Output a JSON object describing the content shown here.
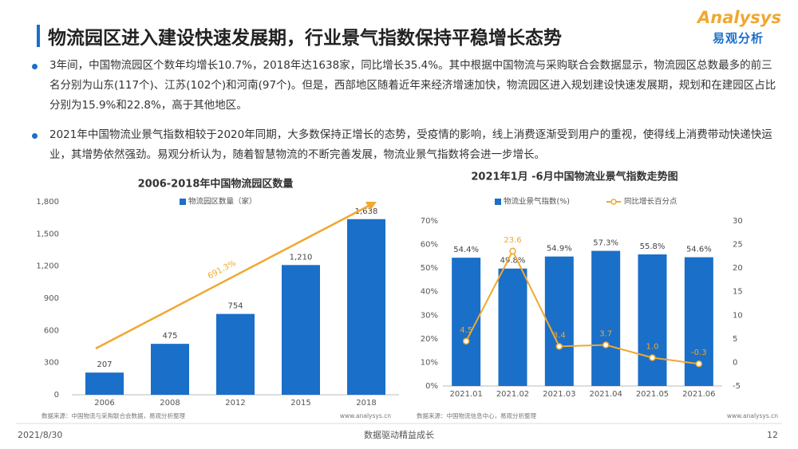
{
  "header": {
    "title": "物流园区进入建设快速发展期，行业景气指数保持平稳增长态势",
    "logo_en": "Analysys",
    "logo_cn": "易观分析"
  },
  "bullets": [
    "3年间，中国物流园区个数年均增长10.7%，2018年达1638家，同比增长35.4%。其中根据中国物流与采购联合会数据显示，物流园区总数最多的前三名分别为山东(117个)、江苏(102个)和河南(97个)。但是，西部地区随着近年来经济增速加快，物流园区进入规划建设快速发展期，规划和在建园区占比分别为15.9%和22.8%，高于其他地区。",
    "2021年中国物流业景气指数相较于2020年同期，大多数保持正增长的态势，受疫情的影响，线上消费逐渐受到用户的重视，使得线上消费带动快递快运业，其增势依然强劲。易观分析认为，随着智慧物流的不断完善发展，物流业景气指数将会进一步增长。"
  ],
  "chart_data": [
    {
      "type": "bar",
      "title": "2006-2018年中国物流园区数量",
      "categories": [
        "2006",
        "2008",
        "2012",
        "2015",
        "2018"
      ],
      "series": [
        {
          "name": "物流园区数量（家）",
          "color": "#1a6fc9",
          "type": "bar",
          "values": [
            207,
            475,
            754,
            1210,
            1638
          ],
          "value_labels": [
            "207",
            "475",
            "754",
            "1,210",
            "1,638"
          ]
        }
      ],
      "ylim": [
        0,
        1800
      ],
      "yticks": [
        0,
        300,
        600,
        900,
        {
          "value": 1200,
          "label": "1,200"
        },
        {
          "value": 1500,
          "label": "1,500"
        },
        {
          "value": 1800,
          "label": "1,800"
        }
      ],
      "grid": false,
      "annotation": "691.3%",
      "annotation_color": "#f0a830",
      "source": "数据来源：中国物流与采购联合会数据，易观分析整理",
      "site": "www.analysys.cn"
    },
    {
      "type": "bar",
      "title": "2021年1月 -6月中国物流业景气指数走势图",
      "categories": [
        "2021.01",
        "2021.02",
        "2021.03",
        "2021.04",
        "2021.05",
        "2021.06"
      ],
      "series": [
        {
          "name": "物流业景气指数(%)",
          "color": "#1a6fc9",
          "type": "bar",
          "values": [
            54.4,
            49.8,
            54.9,
            57.3,
            55.8,
            54.6
          ],
          "value_labels": [
            "54.4%",
            "49.8%",
            "54.9%",
            "57.3%",
            "55.8%",
            "54.6%"
          ]
        },
        {
          "name": "同比增长百分点",
          "color": "#f0a830",
          "type": "line",
          "axis": "y2",
          "values": [
            4.5,
            23.6,
            3.4,
            3.7,
            1.0,
            -0.3
          ],
          "value_labels": [
            "4.5",
            "23.6",
            "3.4",
            "3.7",
            "1.0",
            "-0.3"
          ]
        }
      ],
      "ylim": [
        0,
        70
      ],
      "yticks": [
        {
          "value": 0,
          "label": "0%"
        },
        {
          "value": 10,
          "label": "10%"
        },
        {
          "value": 20,
          "label": "20%"
        },
        {
          "value": 30,
          "label": "30%"
        },
        {
          "value": 40,
          "label": "40%"
        },
        {
          "value": 50,
          "label": "50%"
        },
        {
          "value": 60,
          "label": "60%"
        },
        {
          "value": 70,
          "label": "70%"
        }
      ],
      "y2lim": [
        -5,
        30
      ],
      "y2ticks": [
        -5,
        0,
        5,
        10,
        15,
        20,
        25,
        30
      ],
      "grid": false,
      "source": "数据来源：中国物流信息中心，易观分析整理",
      "site": "www.analysys.cn"
    }
  ],
  "footer": {
    "date": "2021/8/30",
    "slogan": "数据驱动精益成长",
    "page": "12"
  }
}
